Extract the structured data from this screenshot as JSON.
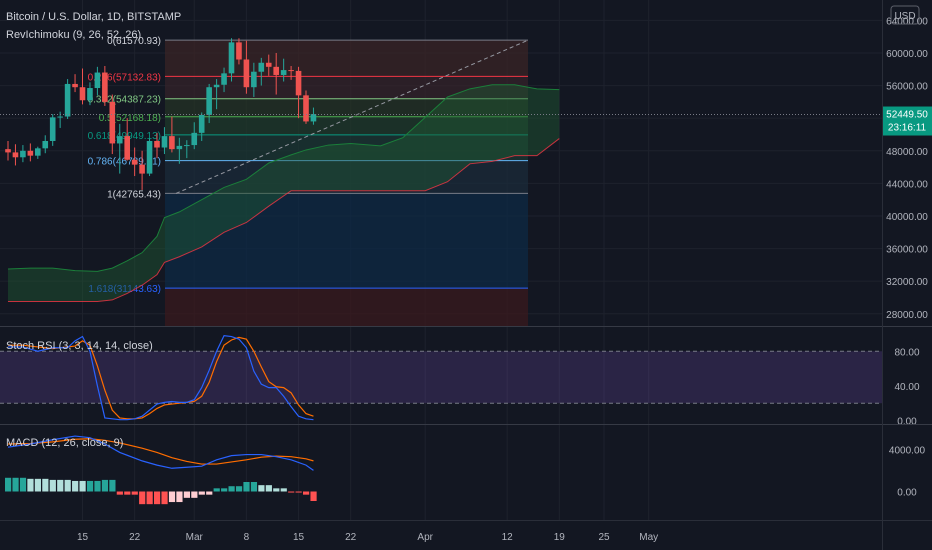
{
  "header": {
    "symbol": "Bitcoin / U.S. Dollar, 1D, BITSTAMP",
    "indicator": "RevIchimoku (9, 26, 52, 26)",
    "currency_button": "USD"
  },
  "price_pane": {
    "last_price": "52449.50",
    "countdown": "23:16:11",
    "price_ticks": [
      {
        "v": 64000,
        "label": "64000.00"
      },
      {
        "v": 60000,
        "label": "60000.00"
      },
      {
        "v": 56000,
        "label": "56000.00"
      },
      {
        "v": 52000,
        "label": "52000.00"
      },
      {
        "v": 48000,
        "label": "48000.00"
      },
      {
        "v": 44000,
        "label": "44000.00"
      },
      {
        "v": 40000,
        "label": "40000.00"
      },
      {
        "v": 36000,
        "label": "36000.00"
      },
      {
        "v": 32000,
        "label": "32000.00"
      },
      {
        "v": 28000,
        "label": "28000.00"
      }
    ],
    "ylim": [
      26500,
      66500
    ],
    "fib_levels": [
      {
        "ratio": "0",
        "price": 61570.93,
        "label": "0(61570.93)",
        "color": "#787b86"
      },
      {
        "ratio": "0.236",
        "price": 57132.83,
        "label": "0.236(57132.83)",
        "color": "#f23645"
      },
      {
        "ratio": "0.382",
        "price": 54387.23,
        "label": "0.382(54387.23)",
        "color": "#81c784"
      },
      {
        "ratio": "0.5",
        "price": 52168.18,
        "label": "0.5(52168.18)",
        "color": "#4caf50"
      },
      {
        "ratio": "0.618",
        "price": 49949.13,
        "label": "0.618(49949.13)",
        "color": "#089981"
      },
      {
        "ratio": "0.786",
        "price": 46789.81,
        "label": "0.786(46789.81)",
        "color": "#64b5f6"
      },
      {
        "ratio": "1",
        "price": 42765.43,
        "label": "1(42765.43)",
        "color": "#787b86"
      },
      {
        "ratio": "1.618",
        "price": 31143.63,
        "label": "1.618(31143.63)",
        "color": "#2962ff"
      }
    ],
    "fib_bottom_price": 26500
  },
  "rsi_pane": {
    "title": "Stoch RSI (3, 3, 14, 14, close)",
    "ticks": [
      {
        "v": 80,
        "label": "80.00"
      },
      {
        "v": 40,
        "label": "40.00"
      },
      {
        "v": 0,
        "label": "0.00"
      }
    ]
  },
  "macd_pane": {
    "title": "MACD (12, 26, close, 9)",
    "ticks": [
      {
        "v": 4000,
        "label": "4000.00"
      },
      {
        "v": 0,
        "label": "0.00"
      }
    ]
  },
  "time_axis": [
    {
      "day": 10,
      "label": "15"
    },
    {
      "day": 17,
      "label": "22"
    },
    {
      "day": 25,
      "label": "Mar"
    },
    {
      "day": 32,
      "label": "8"
    },
    {
      "day": 39,
      "label": "15"
    },
    {
      "day": 46,
      "label": "22"
    },
    {
      "day": 56,
      "label": "Apr"
    },
    {
      "day": 67,
      "label": "12"
    },
    {
      "day": 74,
      "label": "19"
    },
    {
      "day": 80,
      "label": "25"
    },
    {
      "day": 86,
      "label": "May"
    }
  ],
  "chart_data": [
    {
      "type": "candlestick",
      "title": "Bitcoin / U.S. Dollar, 1D, BITSTAMP",
      "x_unit": "days from Feb 5 2021",
      "candles": [
        {
          "d": 0,
          "o": 48200,
          "h": 49200,
          "l": 46800,
          "c": 47800
        },
        {
          "d": 1,
          "o": 47800,
          "h": 48800,
          "l": 46200,
          "c": 47200
        },
        {
          "d": 2,
          "o": 47200,
          "h": 48700,
          "l": 46600,
          "c": 48000
        },
        {
          "d": 3,
          "o": 48000,
          "h": 48900,
          "l": 46700,
          "c": 47400
        },
        {
          "d": 4,
          "o": 47400,
          "h": 48500,
          "l": 47000,
          "c": 48300
        },
        {
          "d": 5,
          "o": 48300,
          "h": 49900,
          "l": 47700,
          "c": 49200
        },
        {
          "d": 6,
          "o": 49200,
          "h": 52500,
          "l": 48600,
          "c": 52100
        },
        {
          "d": 7,
          "o": 52100,
          "h": 52800,
          "l": 50800,
          "c": 52200
        },
        {
          "d": 8,
          "o": 52200,
          "h": 56800,
          "l": 51900,
          "c": 56200
        },
        {
          "d": 9,
          "o": 56200,
          "h": 57400,
          "l": 55200,
          "c": 55800
        },
        {
          "d": 10,
          "o": 55800,
          "h": 58100,
          "l": 53700,
          "c": 54200
        },
        {
          "d": 11,
          "o": 54200,
          "h": 56400,
          "l": 53600,
          "c": 55700
        },
        {
          "d": 12,
          "o": 55700,
          "h": 58300,
          "l": 54800,
          "c": 57600
        },
        {
          "d": 13,
          "o": 57600,
          "h": 58400,
          "l": 53500,
          "c": 54000
        },
        {
          "d": 14,
          "o": 54000,
          "h": 54900,
          "l": 47600,
          "c": 48900
        },
        {
          "d": 15,
          "o": 48900,
          "h": 51300,
          "l": 45200,
          "c": 49800
        },
        {
          "d": 16,
          "o": 49800,
          "h": 52000,
          "l": 46800,
          "c": 46900
        },
        {
          "d": 17,
          "o": 46900,
          "h": 48400,
          "l": 44900,
          "c": 46300
        },
        {
          "d": 18,
          "o": 46300,
          "h": 48000,
          "l": 43200,
          "c": 45200
        },
        {
          "d": 19,
          "o": 45200,
          "h": 49500,
          "l": 44900,
          "c": 49200
        },
        {
          "d": 20,
          "o": 49200,
          "h": 50200,
          "l": 47100,
          "c": 48400
        },
        {
          "d": 21,
          "o": 48400,
          "h": 50900,
          "l": 47600,
          "c": 49800
        },
        {
          "d": 22,
          "o": 49800,
          "h": 52200,
          "l": 47800,
          "c": 48200
        },
        {
          "d": 23,
          "o": 48200,
          "h": 49600,
          "l": 46400,
          "c": 48600
        },
        {
          "d": 24,
          "o": 48600,
          "h": 49300,
          "l": 47100,
          "c": 48700
        },
        {
          "d": 25,
          "o": 48700,
          "h": 51500,
          "l": 48200,
          "c": 50200
        },
        {
          "d": 26,
          "o": 50200,
          "h": 52700,
          "l": 49200,
          "c": 52400
        },
        {
          "d": 27,
          "o": 52400,
          "h": 56200,
          "l": 51400,
          "c": 55800
        },
        {
          "d": 28,
          "o": 55800,
          "h": 56800,
          "l": 53100,
          "c": 56100
        },
        {
          "d": 29,
          "o": 56100,
          "h": 58200,
          "l": 55200,
          "c": 57500
        },
        {
          "d": 30,
          "o": 57500,
          "h": 61800,
          "l": 56500,
          "c": 61300
        },
        {
          "d": 31,
          "o": 61300,
          "h": 61800,
          "l": 58600,
          "c": 59200
        },
        {
          "d": 32,
          "o": 59200,
          "h": 61500,
          "l": 55000,
          "c": 55800
        },
        {
          "d": 33,
          "o": 55800,
          "h": 58800,
          "l": 54600,
          "c": 57700
        },
        {
          "d": 34,
          "o": 57700,
          "h": 59400,
          "l": 56000,
          "c": 58800
        },
        {
          "d": 35,
          "o": 58800,
          "h": 59800,
          "l": 57200,
          "c": 58300
        },
        {
          "d": 36,
          "o": 58300,
          "h": 60000,
          "l": 54900,
          "c": 57300
        },
        {
          "d": 37,
          "o": 57300,
          "h": 59300,
          "l": 56500,
          "c": 57900
        },
        {
          "d": 38,
          "o": 57900,
          "h": 58400,
          "l": 56700,
          "c": 57800
        },
        {
          "d": 39,
          "o": 57800,
          "h": 58300,
          "l": 52000,
          "c": 54800
        },
        {
          "d": 40,
          "o": 54800,
          "h": 55400,
          "l": 51300,
          "c": 51600
        },
        {
          "d": 41,
          "o": 51600,
          "h": 53300,
          "l": 51200,
          "c": 52500
        }
      ]
    },
    {
      "type": "area",
      "name": "RevIchimoku (9, 26, 52, 26)",
      "x_unit": "days from Feb 5 2021",
      "x": [
        0,
        3,
        6,
        9,
        12,
        14,
        16,
        18,
        20,
        21,
        23,
        26,
        29,
        32,
        35,
        38,
        40,
        43,
        46,
        50,
        53,
        56,
        59,
        62,
        65,
        68,
        71,
        74
      ],
      "lead_a": [
        33500,
        33600,
        33600,
        33300,
        33200,
        33600,
        34500,
        35500,
        37500,
        39800,
        40500,
        42000,
        43500,
        44500,
        46500,
        47500,
        48100,
        48700,
        48900,
        48600,
        49600,
        52100,
        54600,
        55600,
        56100,
        56100,
        55600,
        55500
      ],
      "lead_b": [
        29500,
        29500,
        29500,
        29500,
        29500,
        29700,
        30500,
        31500,
        32800,
        34300,
        35000,
        36200,
        38000,
        39200,
        41200,
        43100,
        43100,
        43100,
        43100,
        43100,
        43100,
        43100,
        44200,
        46400,
        46700,
        47400,
        47400,
        49500
      ],
      "colors": {
        "cloud_up": "#1e5a32",
        "lead_b": "#f23645"
      }
    },
    {
      "type": "line",
      "name": "Stoch RSI (3, 3, 14, 14, close)",
      "x_unit": "days from Feb 5 2021",
      "ylim": [
        -4,
        108
      ],
      "x": [
        0,
        2,
        4,
        6,
        8,
        9,
        10,
        11,
        12,
        13,
        14,
        15,
        16,
        17,
        18,
        19,
        20,
        21,
        22,
        23,
        24,
        25,
        26,
        27,
        28,
        29,
        30,
        31,
        32,
        33,
        34,
        35,
        36,
        37,
        38,
        39,
        40,
        41
      ],
      "k": [
        85,
        85,
        80,
        84,
        84,
        92,
        97,
        80,
        40,
        3,
        2,
        1,
        1,
        2,
        5,
        12,
        19,
        21,
        22,
        21,
        21,
        24,
        38,
        58,
        80,
        98,
        97,
        94,
        84,
        57,
        42,
        38,
        38,
        28,
        16,
        5,
        2,
        1
      ],
      "d": [
        87,
        87,
        85,
        83,
        85,
        86,
        92,
        87,
        63,
        35,
        12,
        3,
        2,
        2,
        3,
        8,
        14,
        18,
        19,
        20,
        21,
        22,
        28,
        44,
        68,
        87,
        93,
        96,
        94,
        80,
        62,
        45,
        39,
        38,
        32,
        18,
        8,
        5
      ],
      "colors": {
        "k": "#2962ff",
        "d": "#ff6d00",
        "band": "#7e57c2"
      }
    },
    {
      "type": "bar",
      "name": "MACD (12, 26, close, 9)",
      "x_unit": "days from Feb 5 2021",
      "ylim": [
        -2700,
        6300
      ],
      "x": [
        0,
        3,
        6,
        9,
        11,
        13,
        15,
        18,
        20,
        22,
        24,
        26,
        28,
        30,
        32,
        34,
        36,
        38,
        40,
        41
      ],
      "macd": [
        4200,
        4500,
        4900,
        5250,
        5100,
        4500,
        3700,
        2900,
        2500,
        2200,
        2300,
        2400,
        3000,
        3400,
        3500,
        3500,
        3300,
        3000,
        2500,
        2000
      ],
      "signal": [
        4500,
        4550,
        4700,
        4950,
        5000,
        4850,
        4600,
        4100,
        3700,
        3200,
        2850,
        2600,
        2600,
        2800,
        3000,
        3250,
        3350,
        3300,
        3100,
        2900
      ],
      "histogram": [
        1300,
        1200,
        1100,
        1000,
        1000,
        1100,
        -300,
        -1200,
        -1200,
        -1000,
        -600,
        -300,
        300,
        500,
        900,
        600,
        300,
        -100,
        -300,
        -900
      ],
      "colors": {
        "macd": "#2962ff",
        "signal": "#ff6d00",
        "hist_up": "#26a69a",
        "hist_up_fade": "#b2dfdb",
        "hist_down": "#ff5252",
        "hist_down_fade": "#ffcdd2"
      }
    }
  ]
}
